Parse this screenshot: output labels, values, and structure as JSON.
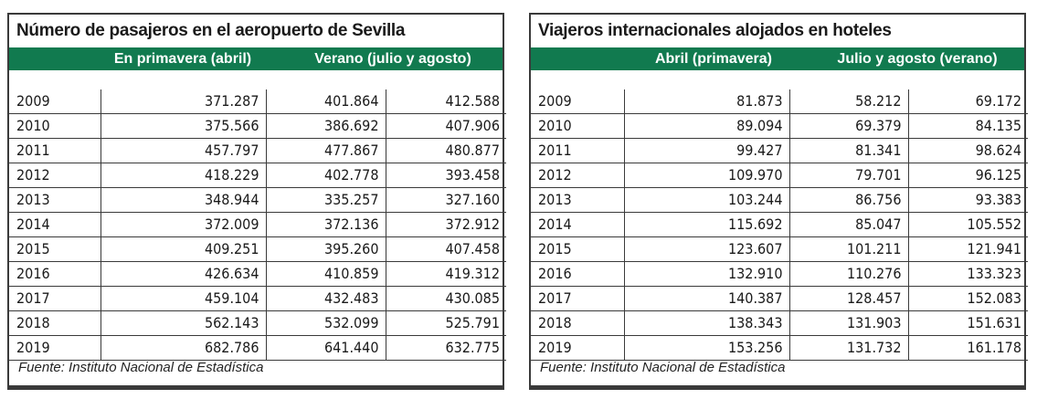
{
  "chart_data": [
    {
      "type": "table",
      "title": "Número de pasajeros en el aeropuerto de Sevilla",
      "headers": [
        "En primavera (abril)",
        "Verano (julio y agosto)"
      ],
      "columns": [
        "",
        "En primavera (abril)",
        "Verano (julio y agosto) — julio",
        "Verano (julio y agosto) — agosto"
      ],
      "rows": [
        [
          "2009",
          "371.287",
          "401.864",
          "412.588"
        ],
        [
          "2010",
          "375.566",
          "386.692",
          "407.906"
        ],
        [
          "2011",
          "457.797",
          "477.867",
          "480.877"
        ],
        [
          "2012",
          "418.229",
          "402.778",
          "393.458"
        ],
        [
          "2013",
          "348.944",
          "335.257",
          "327.160"
        ],
        [
          "2014",
          "372.009",
          "372.136",
          "372.912"
        ],
        [
          "2015",
          "409.251",
          "395.260",
          "407.458"
        ],
        [
          "2016",
          "426.634",
          "410.859",
          "419.312"
        ],
        [
          "2017",
          "459.104",
          "432.483",
          "430.085"
        ],
        [
          "2018",
          "562.143",
          "532.099",
          "525.791"
        ],
        [
          "2019",
          "682.786",
          "641.440",
          "632.775"
        ]
      ],
      "source": "Fuente: Instituto Nacional de Estadística"
    },
    {
      "type": "table",
      "title": "Viajeros internacionales alojados en hoteles",
      "headers": [
        "Abril (primavera)",
        "Julio y agosto (verano)"
      ],
      "columns": [
        "",
        "Abril (primavera)",
        "Julio y agosto (verano) — julio",
        "Julio y agosto (verano) — agosto"
      ],
      "rows": [
        [
          "2009",
          "81.873",
          "58.212",
          "69.172"
        ],
        [
          "2010",
          "89.094",
          "69.379",
          "84.135"
        ],
        [
          "2011",
          "99.427",
          "81.341",
          "98.624"
        ],
        [
          "2012",
          "109.970",
          "79.701",
          "96.125"
        ],
        [
          "2013",
          "103.244",
          "86.756",
          "93.383"
        ],
        [
          "2014",
          "115.692",
          "85.047",
          "105.552"
        ],
        [
          "2015",
          "123.607",
          "101.211",
          "121.941"
        ],
        [
          "2016",
          "132.910",
          "110.276",
          "133.323"
        ],
        [
          "2017",
          "140.387",
          "128.457",
          "152.083"
        ],
        [
          "2018",
          "138.343",
          "131.903",
          "151.631"
        ],
        [
          "2019",
          "153.256",
          "131.732",
          "161.178"
        ]
      ],
      "source": "Fuente: Instituto Nacional de Estadística"
    }
  ],
  "colors": {
    "header_bg": "#117a4f",
    "header_text": "#ffffff",
    "border": "#3a3a3a"
  }
}
